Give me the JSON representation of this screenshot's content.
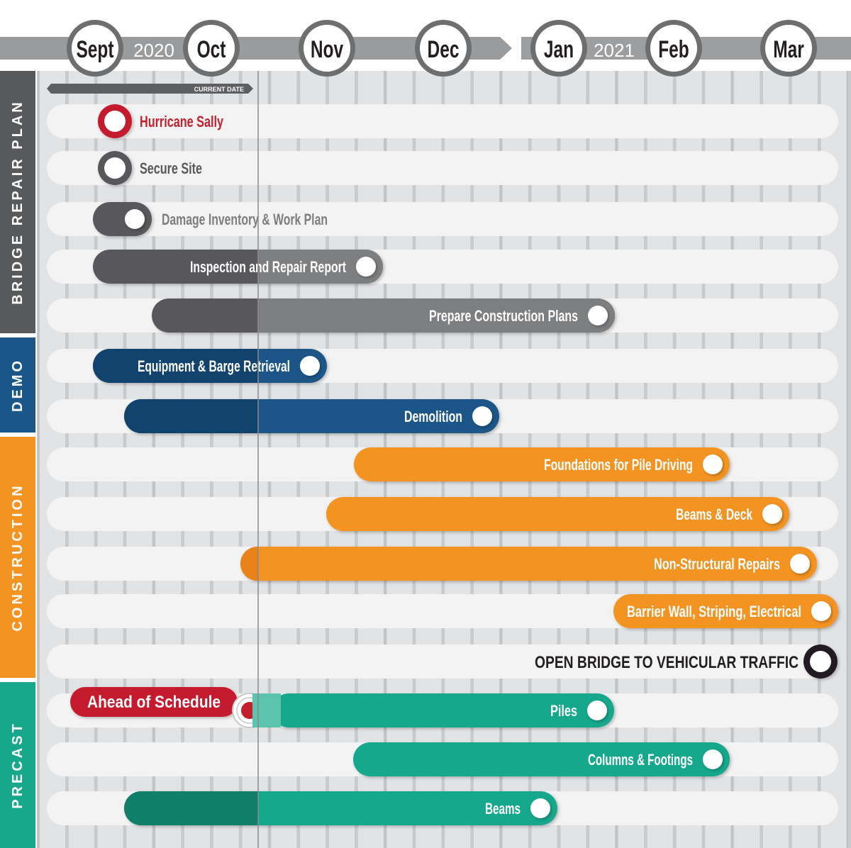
{
  "colors": {
    "background_grid": "#c9cacc",
    "grid_light": "#e2e3e5",
    "row_track": "#f3f3f3",
    "header_bar": "#9a9b9d",
    "bridge": "#58595b",
    "bridge_light": "#7d7e80",
    "demo": "#1b5689",
    "demo_dark": "#12426e",
    "construction": "#f39321",
    "precast": "#17a88c",
    "precast_dark": "#0f7f6a",
    "milestone_red": "#c41f2e",
    "milestone_dark": "#231f20",
    "current_date_line": "#8a8b8d"
  },
  "header": {
    "year_2020": "2020",
    "year_2021": "2021",
    "months": [
      "Sept",
      "Oct",
      "Nov",
      "Dec",
      "Jan",
      "Feb",
      "Mar"
    ],
    "current_date_label": "CURRENT DATE"
  },
  "phases": [
    {
      "label": "BRIDGE REPAIR PLAN",
      "color": "#58595b"
    },
    {
      "label": "DEMO",
      "color": "#1b5689"
    },
    {
      "label": "CONSTRUCTION",
      "color": "#f39321"
    },
    {
      "label": "PRECAST",
      "color": "#17a88c"
    }
  ],
  "chart_data": {
    "type": "gantt",
    "time_axis": {
      "start": "Sept 2020",
      "end": "Mar 2021",
      "ticks": [
        "Sept",
        "Oct",
        "Nov",
        "Dec",
        "Jan",
        "Feb",
        "Mar"
      ]
    },
    "current_date": "Oct 2020",
    "tasks": [
      {
        "name": "Hurricane Sally",
        "phase": "BRIDGE REPAIR PLAN",
        "kind": "milestone",
        "style": "red",
        "start_month": 0.65
      },
      {
        "name": "Secure Site",
        "phase": "BRIDGE REPAIR PLAN",
        "kind": "milestone",
        "style": "gray",
        "start_month": 0.65
      },
      {
        "name": "Damage Inventory & Work Plan",
        "phase": "BRIDGE REPAIR PLAN",
        "kind": "bar",
        "style": "gray",
        "start_month": 0.5,
        "end_month": 1.0
      },
      {
        "name": "Inspection and Repair Report",
        "phase": "BRIDGE REPAIR PLAN",
        "kind": "bar",
        "style": "gray",
        "start_month": 0.5,
        "end_month": 3.0
      },
      {
        "name": "Prepare Construction Plans",
        "phase": "BRIDGE REPAIR PLAN",
        "kind": "bar",
        "style": "gray",
        "start_month": 1.0,
        "end_month": 5.0
      },
      {
        "name": "Equipment & Barge Retrieval",
        "phase": "DEMO",
        "kind": "bar",
        "style": "blue",
        "start_month": 0.5,
        "end_month": 2.5
      },
      {
        "name": "Demolition",
        "phase": "DEMO",
        "kind": "bar",
        "style": "blue",
        "start_month": 0.75,
        "end_month": 4.0
      },
      {
        "name": "Foundations for Pile Driving",
        "phase": "CONSTRUCTION",
        "kind": "bar",
        "style": "orange",
        "start_month": 2.75,
        "end_month": 6.0
      },
      {
        "name": "Beams & Deck",
        "phase": "CONSTRUCTION",
        "kind": "bar",
        "style": "orange",
        "start_month": 2.5,
        "end_month": 6.5
      },
      {
        "name": "Non-Structural Repairs",
        "phase": "CONSTRUCTION",
        "kind": "bar",
        "style": "orange",
        "start_month": 1.75,
        "end_month": 6.75
      },
      {
        "name": "Barrier Wall, Striping, Electrical",
        "phase": "CONSTRUCTION",
        "kind": "bar",
        "style": "orange",
        "start_month": 5.0,
        "end_month": 7.0
      },
      {
        "name": "OPEN BRIDGE TO VEHICULAR TRAFFIC",
        "phase": "CONSTRUCTION",
        "kind": "milestone",
        "style": "dark",
        "start_month": 7.0
      },
      {
        "name": "Piles",
        "phase": "PRECAST",
        "kind": "bar",
        "style": "green",
        "start_month": 2.0,
        "end_month": 5.0,
        "annotation": "Ahead of Schedule"
      },
      {
        "name": "Columns & Footings",
        "phase": "PRECAST",
        "kind": "bar",
        "style": "green",
        "start_month": 2.75,
        "end_month": 6.0
      },
      {
        "name": "Beams",
        "phase": "PRECAST",
        "kind": "bar",
        "style": "green",
        "start_month": 0.75,
        "end_month": 4.5
      }
    ]
  }
}
